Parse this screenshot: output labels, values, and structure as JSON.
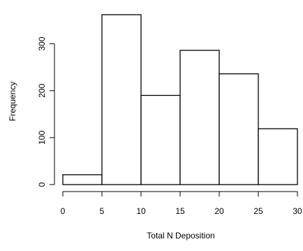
{
  "chart_data": {
    "type": "bar",
    "subtype": "histogram",
    "bins": [
      {
        "from": 0,
        "to": 5,
        "value": 21
      },
      {
        "from": 5,
        "to": 10,
        "value": 362
      },
      {
        "from": 10,
        "to": 15,
        "value": 190
      },
      {
        "from": 15,
        "to": 20,
        "value": 286
      },
      {
        "from": 20,
        "to": 25,
        "value": 236
      },
      {
        "from": 25,
        "to": 30,
        "value": 119
      }
    ],
    "categories": [
      "0-5",
      "5-10",
      "10-15",
      "15-20",
      "20-25",
      "25-30"
    ],
    "values": [
      21,
      362,
      190,
      286,
      236,
      119
    ],
    "title": "",
    "xlabel": "Total N Deposition",
    "ylabel": "Frequency",
    "xlim": [
      0,
      30
    ],
    "ylim": [
      0,
      362
    ],
    "x_ticks": [
      "0",
      "5",
      "10",
      "15",
      "20",
      "25",
      "30"
    ],
    "y_ticks": [
      "0",
      "100",
      "200",
      "300"
    ],
    "grid": false,
    "legend": "none",
    "colors": {
      "bar_fill": "#ffffff",
      "bar_stroke": "#000000",
      "axis": "#000000"
    }
  }
}
